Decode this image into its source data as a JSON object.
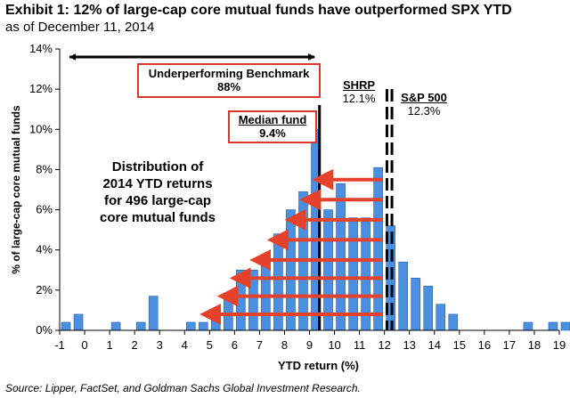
{
  "title": "Exhibit 1: 12% of large-cap core mutual funds have outperformed SPX YTD",
  "subtitle": "as of December 11, 2014",
  "source": "Source: Lipper, FactSet, and Goldman Sachs Global Investment Research.",
  "annotations": {
    "underperforming_label": "Underperforming Benchmark",
    "underperforming_value": "88%",
    "median_label": "Median fund",
    "median_value": "9.4%",
    "shrp_label": "SHRP",
    "shrp_value": "12.1%",
    "sp500_label": "S&P 500",
    "sp500_value": "12.3%",
    "distribution_line1": "Distribution of",
    "distribution_line2": "2014 YTD returns",
    "distribution_line3": "for 496 large-cap",
    "distribution_line4": "core mutual funds"
  },
  "colors": {
    "bar": "#4a8fe0",
    "bar_edge": "#2a5fa8",
    "arrow": "#e5412b",
    "box_border": "#d9382e"
  },
  "chart_data": {
    "type": "bar",
    "xlabel": "YTD return (%)",
    "ylabel": "% of large-cap core mutual funds",
    "xlim": [
      -1,
      19
    ],
    "ylim": [
      0,
      14
    ],
    "x_ticks": [
      "-1",
      "0",
      "1",
      "2",
      "3",
      "4",
      "5",
      "6",
      "7",
      "8",
      "9",
      "10",
      "11",
      "12",
      "13",
      "14",
      "15",
      "16",
      "17",
      "18",
      "19"
    ],
    "y_ticks": [
      "0%",
      "2%",
      "4%",
      "6%",
      "8%",
      "10%",
      "12%",
      "14%"
    ],
    "bin_width": 0.5,
    "bins_left": [
      -1,
      -0.5,
      1,
      2,
      2.5,
      4,
      4.5,
      5,
      5.5,
      6,
      6.5,
      7,
      7.5,
      8,
      8.5,
      9,
      9.5,
      10,
      10.5,
      11,
      11.5,
      12,
      12.5,
      13,
      13.5,
      14,
      14.5,
      17.5,
      18.5,
      19
    ],
    "values": [
      0.4,
      0.8,
      0.4,
      0.4,
      1.7,
      0.4,
      0.4,
      0.8,
      1.7,
      3.0,
      3.0,
      3.4,
      4.8,
      6.0,
      6.9,
      10.0,
      6.0,
      7.3,
      5.6,
      5.6,
      8.1,
      5.2,
      3.4,
      2.6,
      2.2,
      1.3,
      0.8,
      0.4,
      0.4,
      0.4
    ],
    "reference_lines": [
      {
        "label": "Median fund",
        "x": 9.4,
        "style": "solid"
      },
      {
        "label": "SHRP",
        "x": 12.1,
        "style": "dashed"
      },
      {
        "label": "S&P 500",
        "x": 12.3,
        "style": "dashed"
      }
    ],
    "arrows_to_x": [
      4.6,
      5.3,
      5.8,
      6.6,
      7.3,
      8.0,
      8.6,
      9.1
    ],
    "arrows_y": [
      0.8,
      1.7,
      2.6,
      3.5,
      4.5,
      5.5,
      6.5,
      7.5
    ]
  }
}
